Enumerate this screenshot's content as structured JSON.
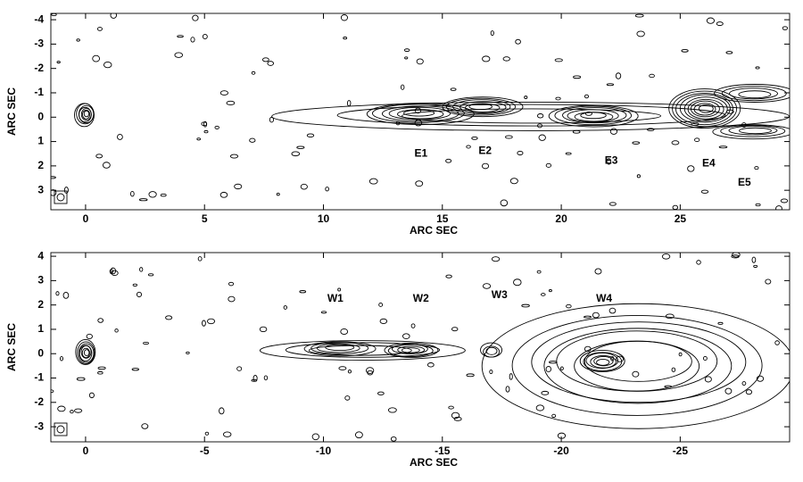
{
  "chart_data": [
    {
      "type": "contour",
      "xlabel": "ARC SEC",
      "ylabel": "ARC SEC",
      "xlim": [
        -1.46,
        29.6
      ],
      "ylim": [
        3.8,
        -4.26
      ],
      "xticks": [
        0,
        5,
        10,
        15,
        20,
        25
      ],
      "yticks": [
        -4,
        -3,
        -2,
        -1,
        0,
        1,
        2,
        3
      ],
      "annotations": [
        {
          "text": "E1",
          "x": 14.1,
          "y": 1.5
        },
        {
          "text": "E2",
          "x": 16.8,
          "y": 1.4
        },
        {
          "text": "E3",
          "x": 22.1,
          "y": 1.8
        },
        {
          "text": "E4",
          "x": 26.2,
          "y": 1.9
        },
        {
          "text": "E5",
          "x": 27.7,
          "y": 2.7
        }
      ]
    },
    {
      "type": "contour",
      "xlabel": "ARC SEC",
      "ylabel": "ARC SEC",
      "xlim": [
        1.46,
        -29.6
      ],
      "ylim": [
        -3.62,
        4.15
      ],
      "xticks": [
        0,
        -5,
        -10,
        -15,
        -20,
        -25
      ],
      "yticks": [
        -3,
        -2,
        -1,
        0,
        1,
        2,
        3,
        4
      ],
      "annotations": [
        {
          "text": "W1",
          "x": -10.5,
          "y": 2.25
        },
        {
          "text": "W2",
          "x": -14.1,
          "y": 2.25
        },
        {
          "text": "W3",
          "x": -17.4,
          "y": 2.4
        },
        {
          "text": "W4",
          "x": -21.8,
          "y": 2.25
        }
      ]
    }
  ]
}
